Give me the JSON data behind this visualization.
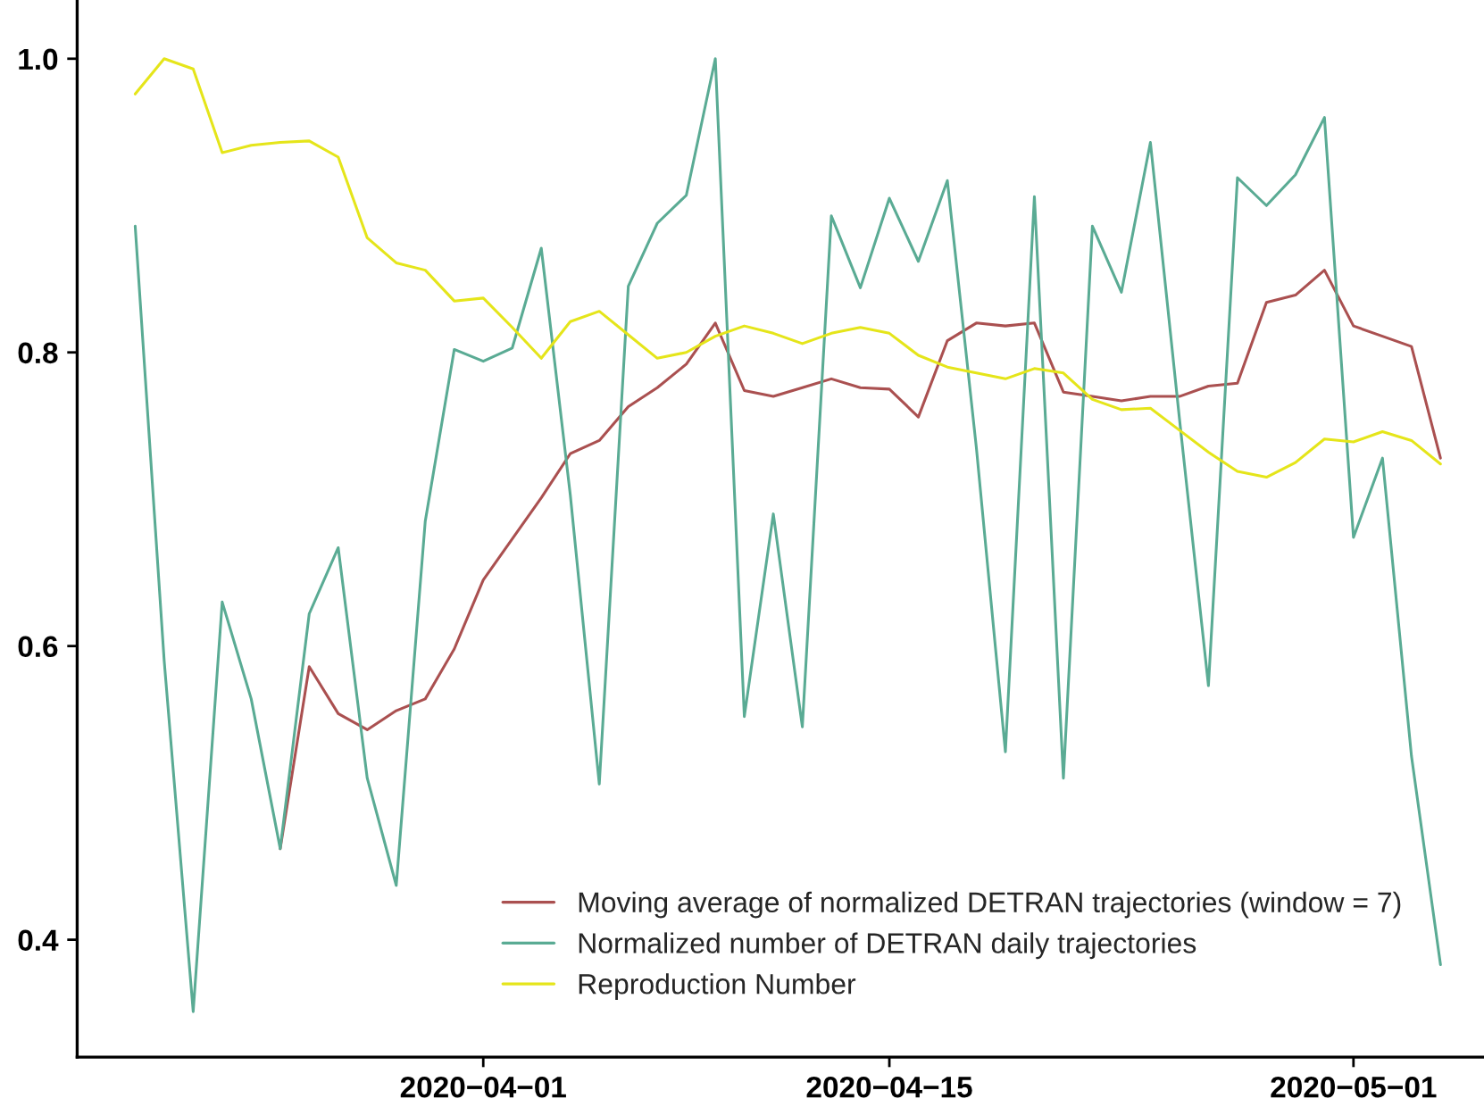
{
  "chart_data": {
    "type": "line",
    "x": [
      "2020-03-20",
      "2020-03-21",
      "2020-03-22",
      "2020-03-23",
      "2020-03-24",
      "2020-03-25",
      "2020-03-26",
      "2020-03-27",
      "2020-03-28",
      "2020-03-29",
      "2020-03-30",
      "2020-03-31",
      "2020-04-01",
      "2020-04-02",
      "2020-04-03",
      "2020-04-04",
      "2020-04-05",
      "2020-04-06",
      "2020-04-07",
      "2020-04-08",
      "2020-04-09",
      "2020-04-10",
      "2020-04-11",
      "2020-04-12",
      "2020-04-13",
      "2020-04-14",
      "2020-04-15",
      "2020-04-16",
      "2020-04-17",
      "2020-04-18",
      "2020-04-19",
      "2020-04-20",
      "2020-04-21",
      "2020-04-22",
      "2020-04-23",
      "2020-04-24",
      "2020-04-25",
      "2020-04-26",
      "2020-04-27",
      "2020-04-28",
      "2020-04-29",
      "2020-04-30",
      "2020-05-01",
      "2020-05-02",
      "2020-05-03",
      "2020-05-04"
    ],
    "series": [
      {
        "name": "Moving average of normalized DETRAN trajectories (window = 7)",
        "color": "#aa5050",
        "values": [
          null,
          null,
          null,
          null,
          null,
          0.462,
          0.586,
          0.554,
          0.543,
          0.556,
          0.564,
          0.598,
          0.645,
          0.673,
          0.701,
          0.731,
          0.74,
          0.763,
          0.776,
          0.792,
          0.82,
          0.774,
          0.77,
          0.776,
          0.782,
          0.776,
          0.775,
          0.756,
          0.808,
          0.82,
          0.818,
          0.82,
          0.773,
          0.77,
          0.767,
          0.77,
          0.77,
          0.777,
          0.779,
          0.834,
          0.839,
          0.856,
          0.818,
          0.811,
          0.804,
          0.728
        ]
      },
      {
        "name": "Normalized number of DETRAN daily trajectories",
        "color": "#5aab94",
        "values": [
          0.886,
          0.59,
          0.351,
          0.63,
          0.564,
          0.462,
          0.622,
          0.667,
          0.51,
          0.437,
          0.685,
          0.802,
          0.794,
          0.803,
          0.871,
          0.703,
          0.506,
          0.845,
          0.888,
          0.907,
          1.0,
          0.552,
          0.69,
          0.545,
          0.893,
          0.844,
          0.905,
          0.862,
          0.917,
          0.735,
          0.528,
          0.906,
          0.51,
          0.886,
          0.841,
          0.943,
          0.755,
          0.573,
          0.919,
          0.9,
          0.921,
          0.96,
          0.674,
          0.728,
          0.525,
          0.383
        ]
      },
      {
        "name": "Reproduction Number",
        "color": "#e5e51a",
        "values": [
          0.976,
          1.0,
          0.993,
          0.936,
          0.941,
          0.943,
          0.944,
          0.933,
          0.878,
          0.861,
          0.856,
          0.835,
          0.837,
          0.817,
          0.796,
          0.821,
          0.828,
          0.812,
          0.796,
          0.8,
          0.811,
          0.818,
          0.813,
          0.806,
          0.813,
          0.817,
          0.813,
          0.798,
          0.79,
          0.786,
          0.782,
          0.789,
          0.786,
          0.768,
          0.761,
          0.762,
          0.747,
          0.732,
          0.719,
          0.715,
          0.725,
          0.741,
          0.739,
          0.746,
          0.74,
          0.724
        ]
      }
    ],
    "xlim": [
      "2020-03-18",
      "2020-05-05T12:00"
    ],
    "xticks": [
      {
        "value": "2020-04-01",
        "label": "2020−04−01"
      },
      {
        "value": "2020-04-15",
        "label": "2020−04−15"
      },
      {
        "value": "2020-05-01",
        "label": "2020−05−01"
      }
    ],
    "ylim": [
      0.32,
      1.04
    ],
    "yticks": [
      0.4,
      0.6,
      0.8,
      {
        "value": 1.0,
        "label": "1.0"
      }
    ],
    "grid": false,
    "legend": "bottom right",
    "marker": "none",
    "line_style": "solid"
  }
}
